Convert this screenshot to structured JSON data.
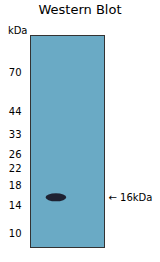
{
  "chart_data": {
    "type": "gel",
    "title": "Western Blot",
    "ylabel": "kDa",
    "log": "y",
    "ylim": [
      8.5,
      110
    ],
    "yticks": [
      70,
      44,
      33,
      26,
      22,
      18,
      14,
      10
    ],
    "values": [
      15.5
    ],
    "band_height": [
      1.5
    ],
    "color": "#1a1a2a",
    "annotations": [
      {
        "text": "← 16kDa",
        "y": 15.5
      }
    ],
    "tick_labels": "y",
    "grid": false
  }
}
